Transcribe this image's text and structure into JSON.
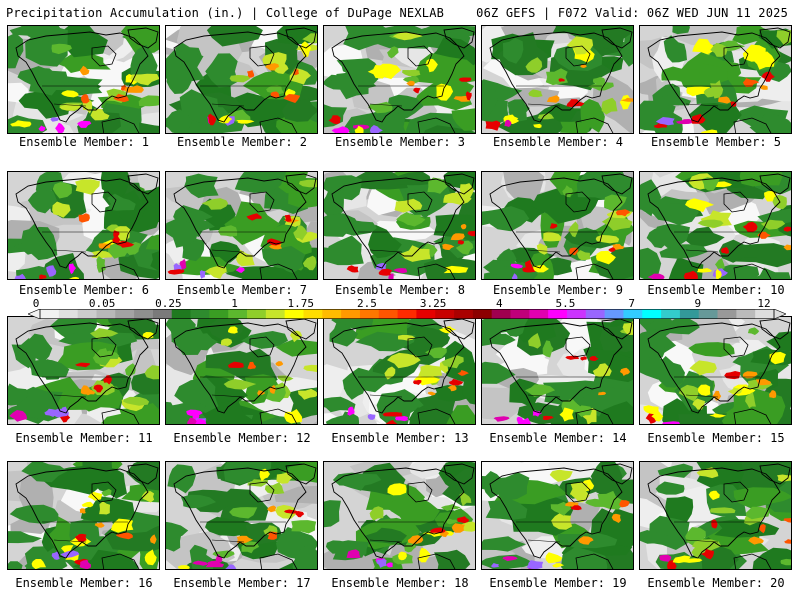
{
  "header": {
    "left": "Precipitation Accumulation (in.) | College of DuPage NEXLAB",
    "right": "06Z GEFS | F072 Valid: 06Z WED JUN 11 2025"
  },
  "panels": [
    {
      "label": "Ensemble Member: 1"
    },
    {
      "label": "Ensemble Member: 2"
    },
    {
      "label": "Ensemble Member: 3"
    },
    {
      "label": "Ensemble Member: 4"
    },
    {
      "label": "Ensemble Member: 5"
    },
    {
      "label": "Ensemble Member: 6"
    },
    {
      "label": "Ensemble Member: 7"
    },
    {
      "label": "Ensemble Member: 8"
    },
    {
      "label": "Ensemble Member: 9"
    },
    {
      "label": "Ensemble Member: 10"
    },
    {
      "label": "Ensemble Member: 11"
    },
    {
      "label": "Ensemble Member: 12"
    },
    {
      "label": "Ensemble Member: 13"
    },
    {
      "label": "Ensemble Member: 14"
    },
    {
      "label": "Ensemble Member: 15"
    },
    {
      "label": "Ensemble Member: 16"
    },
    {
      "label": "Ensemble Member: 17"
    },
    {
      "label": "Ensemble Member: 18"
    },
    {
      "label": "Ensemble Member: 19"
    },
    {
      "label": "Ensemble Member: 20"
    }
  ],
  "colorbar": {
    "ticks": [
      "0",
      "0.05",
      "0.25",
      "1",
      "1.75",
      "2.5",
      "3.25",
      "4",
      "5.5",
      "7",
      "9",
      "12"
    ],
    "colors": [
      "#f2f2f2",
      "#e0e0e0",
      "#cccccc",
      "#b8b8b8",
      "#a3a3a3",
      "#8f8f8f",
      "#7a7a7a",
      "#1f7a1f",
      "#2e8b2e",
      "#3a9d23",
      "#5cb82e",
      "#8fce2a",
      "#c7e52a",
      "#ffff00",
      "#ffdd00",
      "#ffbb00",
      "#ff9900",
      "#ff7700",
      "#ff5500",
      "#ff2a00",
      "#e60000",
      "#c80000",
      "#aa0000",
      "#8c0000",
      "#a0004f",
      "#c0007a",
      "#e000b0",
      "#ff00ff",
      "#cc33ff",
      "#9966ff",
      "#6699ff",
      "#33ccff",
      "#00ffff",
      "#33cccc",
      "#339999",
      "#669999",
      "#999999",
      "#bbbbbb",
      "#dddddd"
    ]
  }
}
